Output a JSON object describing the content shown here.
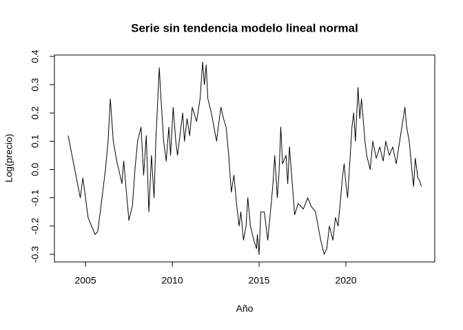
{
  "chart_data": {
    "type": "line",
    "title": "Serie sin tendencia modelo lineal normal",
    "x_label": "Año",
    "y_label": "Log(precio)",
    "color": "#000000",
    "xlim": [
      2003.21,
      2025.12
    ],
    "ylim": [
      -0.327,
      0.405
    ],
    "xticks": [
      2005,
      2010,
      2015,
      2020
    ],
    "yticks": [
      -0.3,
      -0.2,
      -0.1,
      {
        "value": 0,
        "label": "0.0"
      },
      0.1,
      0.2,
      0.3,
      0.4
    ],
    "x": [
      2004.0,
      2004.7,
      2004.85,
      2005.15,
      2005.55,
      2005.7,
      2005.85,
      2006.15,
      2006.3,
      2006.43,
      2006.6,
      2006.8,
      2007.1,
      2007.2,
      2007.5,
      2007.7,
      2007.85,
      2008.0,
      2008.2,
      2008.35,
      2008.5,
      2008.65,
      2008.8,
      2008.95,
      2009.05,
      2009.25,
      2009.35,
      2009.5,
      2009.65,
      2009.8,
      2009.9,
      2010.05,
      2010.2,
      2010.3,
      2010.5,
      2010.6,
      2010.7,
      2010.85,
      2011.0,
      2011.15,
      2011.4,
      2011.6,
      2011.75,
      2011.85,
      2011.95,
      2012.05,
      2012.25,
      2012.4,
      2012.55,
      2012.65,
      2012.8,
      2012.95,
      2013.1,
      2013.25,
      2013.4,
      2013.55,
      2013.7,
      2013.85,
      2013.95,
      2014.1,
      2014.25,
      2014.35,
      2014.5,
      2014.7,
      2014.85,
      2014.9,
      2015.0,
      2015.1,
      2015.3,
      2015.5,
      2015.7,
      2015.8,
      2015.9,
      2016.05,
      2016.15,
      2016.25,
      2016.35,
      2016.55,
      2016.65,
      2016.75,
      2016.95,
      2017.05,
      2017.25,
      2017.55,
      2017.8,
      2018.0,
      2018.25,
      2018.4,
      2018.55,
      2018.75,
      2018.9,
      2019.05,
      2019.25,
      2019.4,
      2019.55,
      2019.7,
      2019.8,
      2019.9,
      2020.0,
      2020.1,
      2020.25,
      2020.35,
      2020.45,
      2020.55,
      2020.7,
      2020.8,
      2020.9,
      2021.1,
      2021.2,
      2021.4,
      2021.55,
      2021.75,
      2021.95,
      2022.15,
      2022.3,
      2022.5,
      2022.7,
      2022.9,
      2023.1,
      2023.3,
      2023.4,
      2023.5,
      2023.65,
      2023.8,
      2023.9,
      2024.0,
      2024.15,
      2024.25,
      2024.35
    ],
    "values": [
      0.12,
      -0.1,
      -0.03,
      -0.17,
      -0.23,
      -0.22,
      -0.15,
      0.0,
      0.1,
      0.25,
      0.1,
      0.03,
      -0.05,
      0.03,
      -0.18,
      -0.13,
      0.0,
      0.1,
      0.15,
      -0.02,
      0.12,
      -0.15,
      0.05,
      -0.1,
      0.1,
      0.36,
      0.25,
      0.1,
      0.03,
      0.15,
      0.05,
      0.22,
      0.1,
      0.05,
      0.15,
      0.2,
      0.1,
      0.18,
      0.12,
      0.22,
      0.17,
      0.25,
      0.38,
      0.3,
      0.37,
      0.25,
      0.2,
      0.15,
      0.1,
      0.15,
      0.22,
      0.18,
      0.15,
      0.05,
      -0.08,
      -0.02,
      -0.12,
      -0.2,
      -0.15,
      -0.25,
      -0.2,
      -0.1,
      -0.2,
      -0.25,
      -0.28,
      -0.23,
      -0.3,
      -0.15,
      -0.15,
      -0.25,
      -0.12,
      -0.05,
      0.05,
      -0.1,
      -0.01,
      0.15,
      0.02,
      0.05,
      -0.05,
      0.08,
      -0.08,
      -0.16,
      -0.12,
      -0.14,
      -0.1,
      -0.13,
      -0.15,
      -0.2,
      -0.25,
      -0.3,
      -0.28,
      -0.2,
      -0.25,
      -0.17,
      -0.2,
      -0.1,
      -0.03,
      0.02,
      -0.05,
      -0.1,
      0.05,
      0.15,
      0.2,
      0.1,
      0.29,
      0.18,
      0.25,
      0.1,
      0.05,
      0.0,
      0.1,
      0.04,
      0.08,
      0.03,
      0.1,
      0.05,
      0.08,
      0.02,
      0.1,
      0.18,
      0.22,
      0.15,
      0.1,
      0.0,
      -0.06,
      0.04,
      -0.03,
      -0.04,
      -0.06
    ]
  }
}
